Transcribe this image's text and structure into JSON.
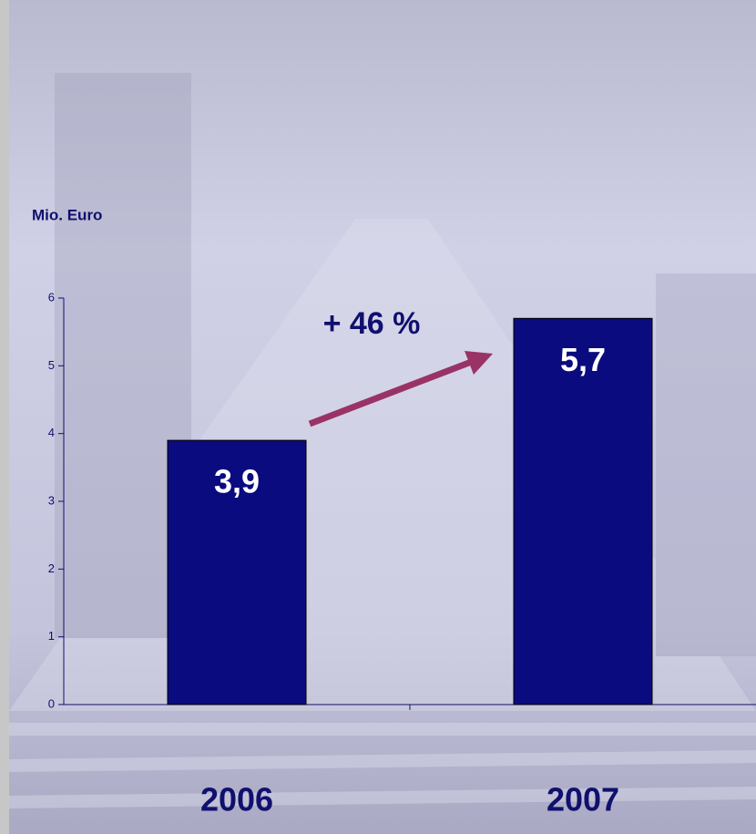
{
  "chart_data": {
    "type": "bar",
    "y_label": "Mio. Euro",
    "annotation": "+ 46 %",
    "categories": [
      "2006",
      "2007"
    ],
    "values": [
      3.9,
      5.7
    ],
    "value_labels": [
      "3,9",
      "5,7"
    ],
    "color": "#0b0b80",
    "arrow_color": "#993366",
    "ylim": [
      0,
      6
    ],
    "yticks": [
      0,
      1,
      2,
      3,
      4,
      5,
      6
    ],
    "grid": false
  }
}
